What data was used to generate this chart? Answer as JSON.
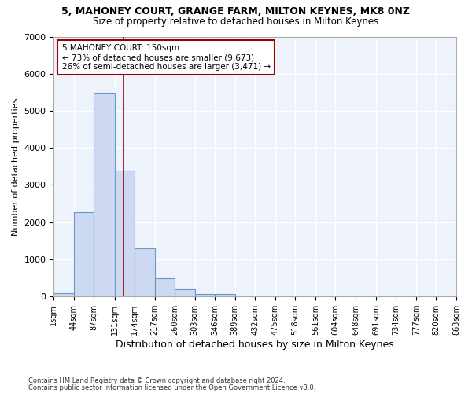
{
  "title1": "5, MAHONEY COURT, GRANGE FARM, MILTON KEYNES, MK8 0NZ",
  "title2": "Size of property relative to detached houses in Milton Keynes",
  "xlabel": "Distribution of detached houses by size in Milton Keynes",
  "ylabel": "Number of detached properties",
  "bar_edges": [
    1,
    44,
    87,
    131,
    174,
    217,
    260,
    303,
    346,
    389,
    432,
    475,
    518,
    561,
    604,
    648,
    691,
    734,
    777,
    820,
    863
  ],
  "bar_heights": [
    90,
    2280,
    5480,
    3400,
    1300,
    490,
    185,
    75,
    75,
    10,
    4,
    2,
    1,
    1,
    1,
    0,
    0,
    0,
    0,
    0
  ],
  "bar_color": "#ccd9f0",
  "bar_edgecolor": "#6699cc",
  "bar_linewidth": 0.8,
  "red_line_x": 150,
  "red_line_color": "#990000",
  "annotation_text": "5 MAHONEY COURT: 150sqm\n← 73% of detached houses are smaller (9,673)\n26% of semi-detached houses are larger (3,471) →",
  "annotation_bbox_edgecolor": "#990000",
  "annotation_bbox_facecolor": "white",
  "ylim": [
    0,
    7000
  ],
  "yticks": [
    0,
    1000,
    2000,
    3000,
    4000,
    5000,
    6000,
    7000
  ],
  "tick_labels": [
    "1sqm",
    "44sqm",
    "87sqm",
    "131sqm",
    "174sqm",
    "217sqm",
    "260sqm",
    "303sqm",
    "346sqm",
    "389sqm",
    "432sqm",
    "475sqm",
    "518sqm",
    "561sqm",
    "604sqm",
    "648sqm",
    "691sqm",
    "734sqm",
    "777sqm",
    "820sqm",
    "863sqm"
  ],
  "bg_color": "#eef2fb",
  "grid_color": "white",
  "footer1": "Contains HM Land Registry data © Crown copyright and database right 2024.",
  "footer2": "Contains public sector information licensed under the Open Government Licence v3.0."
}
